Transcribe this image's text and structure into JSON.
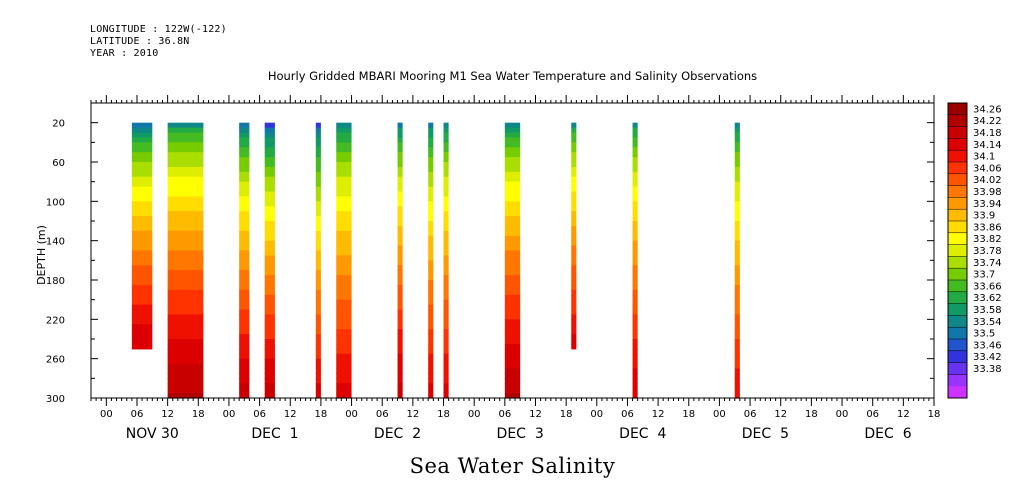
{
  "header": {
    "longitude": "LONGITUDE : 122W(-122)",
    "latitude": "LATITUDE : 36.8N",
    "year": "YEAR : 2010"
  },
  "title": "Hourly Gridded MBARI Mooring M1 Sea Water Temperature and Salinity Observations",
  "footer_label": "Sea Water Salinity",
  "chart_data": {
    "type": "heatmap",
    "variable": "Sea Water Salinity",
    "ylabel": "DEPTH (m)",
    "ylim": [
      300,
      0
    ],
    "y_ticks": [
      20,
      60,
      100,
      140,
      180,
      220,
      260,
      300
    ],
    "x_hour_labels": [
      "00",
      "06",
      "12",
      "18",
      "00",
      "06",
      "12",
      "18",
      "00",
      "06",
      "12",
      "18",
      "00",
      "06",
      "12",
      "18",
      "00",
      "06",
      "12",
      "18",
      "00",
      "06",
      "12",
      "18",
      "00",
      "06",
      "12",
      "18"
    ],
    "x_day_labels": [
      "NOV 30",
      "DEC  1",
      "DEC  2",
      "DEC  3",
      "DEC  4",
      "DEC  5",
      "DEC  6"
    ],
    "x_range_hours": [
      -3,
      162
    ],
    "colorbar": {
      "levels": [
        "34.26",
        "34.22",
        "34.18",
        "34.14",
        "34.1",
        "34.06",
        "34.02",
        "33.98",
        "33.94",
        "33.9",
        "33.86",
        "33.82",
        "33.78",
        "33.74",
        "33.7",
        "33.66",
        "33.62",
        "33.58",
        "33.54",
        "33.5",
        "33.46",
        "33.42",
        "33.38"
      ],
      "colors": [
        "#990000",
        "#b00000",
        "#c80000",
        "#dd0000",
        "#ee1100",
        "#ff3300",
        "#ff5500",
        "#ff7700",
        "#ff9900",
        "#ffbb00",
        "#ffdd00",
        "#ffff00",
        "#ddee00",
        "#aadd00",
        "#77cc00",
        "#44bb22",
        "#22aa44",
        "#119966",
        "#118888",
        "#1177aa",
        "#2255cc",
        "#3333dd",
        "#6633ee",
        "#9933ff",
        "#cc33ff"
      ]
    },
    "columns": [
      {
        "start_hour": 5,
        "end_hour": 9,
        "top_depth": 20,
        "bottom_depth": 250,
        "top_value": 33.56,
        "bottom_value": 34.16
      },
      {
        "start_hour": 12,
        "end_hour": 19,
        "top_depth": 20,
        "bottom_depth": 300,
        "top_value": 33.62,
        "bottom_value": 34.2
      },
      {
        "start_hour": 26,
        "end_hour": 28,
        "top_depth": 20,
        "bottom_depth": 300,
        "top_value": 33.56,
        "bottom_value": 34.18
      },
      {
        "start_hour": 31,
        "end_hour": 33,
        "top_depth": 20,
        "bottom_depth": 300,
        "top_value": 33.52,
        "bottom_value": 34.18
      },
      {
        "start_hour": 41,
        "end_hour": 42,
        "top_depth": 20,
        "bottom_depth": 300,
        "top_value": 33.52,
        "bottom_value": 34.14
      },
      {
        "start_hour": 45,
        "end_hour": 48,
        "top_depth": 20,
        "bottom_depth": 300,
        "top_value": 33.6,
        "bottom_value": 34.14
      },
      {
        "start_hour": 57,
        "end_hour": 58,
        "top_depth": 20,
        "bottom_depth": 300,
        "top_value": 33.58,
        "bottom_value": 34.18
      },
      {
        "start_hour": 63,
        "end_hour": 64,
        "top_depth": 20,
        "bottom_depth": 300,
        "top_value": 33.58,
        "bottom_value": 34.14
      },
      {
        "start_hour": 66,
        "end_hour": 67,
        "top_depth": 20,
        "bottom_depth": 300,
        "top_value": 33.6,
        "bottom_value": 34.14
      },
      {
        "start_hour": 78,
        "end_hour": 81,
        "top_depth": 20,
        "bottom_depth": 300,
        "top_value": 33.6,
        "bottom_value": 34.2
      },
      {
        "start_hour": 91,
        "end_hour": 92,
        "top_depth": 20,
        "bottom_depth": 250,
        "top_value": 33.62,
        "bottom_value": 34.14
      },
      {
        "start_hour": 103,
        "end_hour": 104,
        "top_depth": 20,
        "bottom_depth": 300,
        "top_value": 33.62,
        "bottom_value": 34.16
      },
      {
        "start_hour": 123,
        "end_hour": 124,
        "top_depth": 20,
        "bottom_depth": 300,
        "top_value": 33.6,
        "bottom_value": 34.12
      }
    ]
  }
}
